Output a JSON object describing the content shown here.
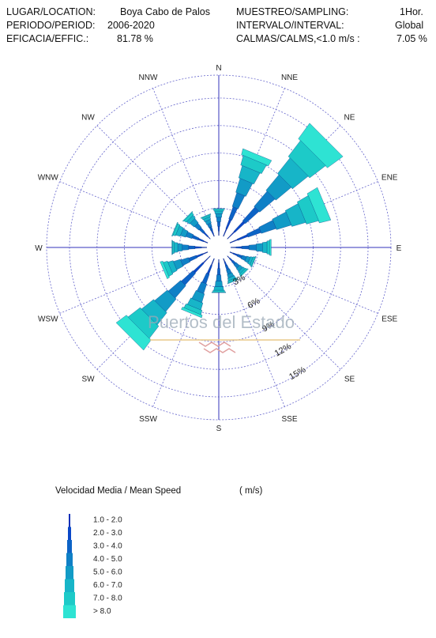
{
  "header": {
    "location_label": "LUGAR/LOCATION:",
    "location_value": "Boya  Cabo de Palos",
    "period_label": "PERIODO/PERIOD:",
    "period_value": "2006-2020",
    "efficiency_label": "EFICACIA/EFFIC.:",
    "efficiency_value": "81.78 %",
    "sampling_label": "MUESTREO/SAMPLING:",
    "sampling_value": "1Hor.",
    "interval_label": "INTERVALO/INTERVAL:",
    "interval_value": "Global",
    "calms_label": "CALMAS/CALMS,<1.0 m/s  :",
    "calms_value": "7.05 %"
  },
  "watermark": "Puertos del Estado",
  "legend": {
    "title": "Velocidad Media    / Mean Speed",
    "units": "( m/s)"
  },
  "colors": {
    "grid": "#6666cc",
    "bins": [
      "#0b2fb8",
      "#0a48c8",
      "#0c63c6",
      "#0f80c6",
      "#129bc6",
      "#17b5c8",
      "#1dcac8",
      "#2ee3d3"
    ]
  },
  "chart_data": {
    "type": "windrose",
    "directions": [
      "N",
      "NNE",
      "NE",
      "ENE",
      "E",
      "ESE",
      "SE",
      "SSE",
      "S",
      "SSW",
      "SW",
      "WSW",
      "W",
      "WNW",
      "NW",
      "NNW"
    ],
    "ring_labels": [
      "3%",
      "6%",
      "9%",
      "12%",
      "15%"
    ],
    "rings": [
      3,
      6,
      9,
      12,
      15
    ],
    "rmax": 17.5,
    "speed_bins": [
      "1.0 -  2.0",
      "2.0 -  3.0",
      "3.0 -  4.0",
      "4.0 -  5.0",
      "5.0 -  6.0",
      "6.0 -  7.0",
      "7.0 -  8.0",
      "> 8.0"
    ],
    "frequencies_cumulative": [
      [
        0.5,
        1.0,
        1.5,
        2.0,
        2.4,
        2.7,
        2.9,
        3.0
      ],
      [
        0.9,
        2.0,
        3.4,
        5.0,
        6.6,
        8.0,
        9.1,
        9.8
      ],
      [
        1.1,
        2.6,
        4.6,
        6.8,
        9.0,
        11.2,
        13.4,
        15.5
      ],
      [
        0.9,
        2.1,
        3.6,
        5.3,
        7.0,
        8.6,
        10.0,
        11.3
      ],
      [
        0.6,
        1.2,
        2.0,
        2.8,
        3.5,
        4.0,
        4.3,
        4.5
      ],
      [
        0.4,
        0.9,
        1.4,
        1.9,
        2.3,
        2.6,
        2.8,
        2.9
      ],
      [
        0.4,
        0.8,
        1.2,
        1.7,
        2.1,
        2.4,
        2.6,
        2.7
      ],
      [
        0.4,
        0.8,
        1.3,
        1.8,
        2.2,
        2.5,
        2.7,
        2.8
      ],
      [
        0.4,
        1.0,
        1.7,
        2.4,
        3.0,
        3.4,
        3.6,
        3.7
      ],
      [
        0.8,
        1.8,
        2.9,
        4.0,
        5.0,
        5.8,
        6.3,
        6.6
      ],
      [
        1.1,
        2.5,
        4.2,
        6.0,
        7.8,
        9.5,
        11.2,
        12.6
      ],
      [
        0.6,
        1.3,
        2.2,
        3.1,
        3.9,
        4.5,
        5.0,
        5.3
      ],
      [
        0.6,
        1.3,
        2.0,
        2.7,
        3.2,
        3.6,
        3.8,
        3.9
      ],
      [
        0.5,
        1.1,
        1.8,
        2.5,
        3.1,
        3.6,
        3.9,
        4.0
      ],
      [
        0.4,
        1.0,
        1.6,
        2.2,
        2.8,
        3.2,
        3.5,
        3.6
      ],
      [
        0.3,
        0.7,
        1.1,
        1.5,
        1.9,
        2.2,
        2.4,
        2.5
      ]
    ]
  }
}
